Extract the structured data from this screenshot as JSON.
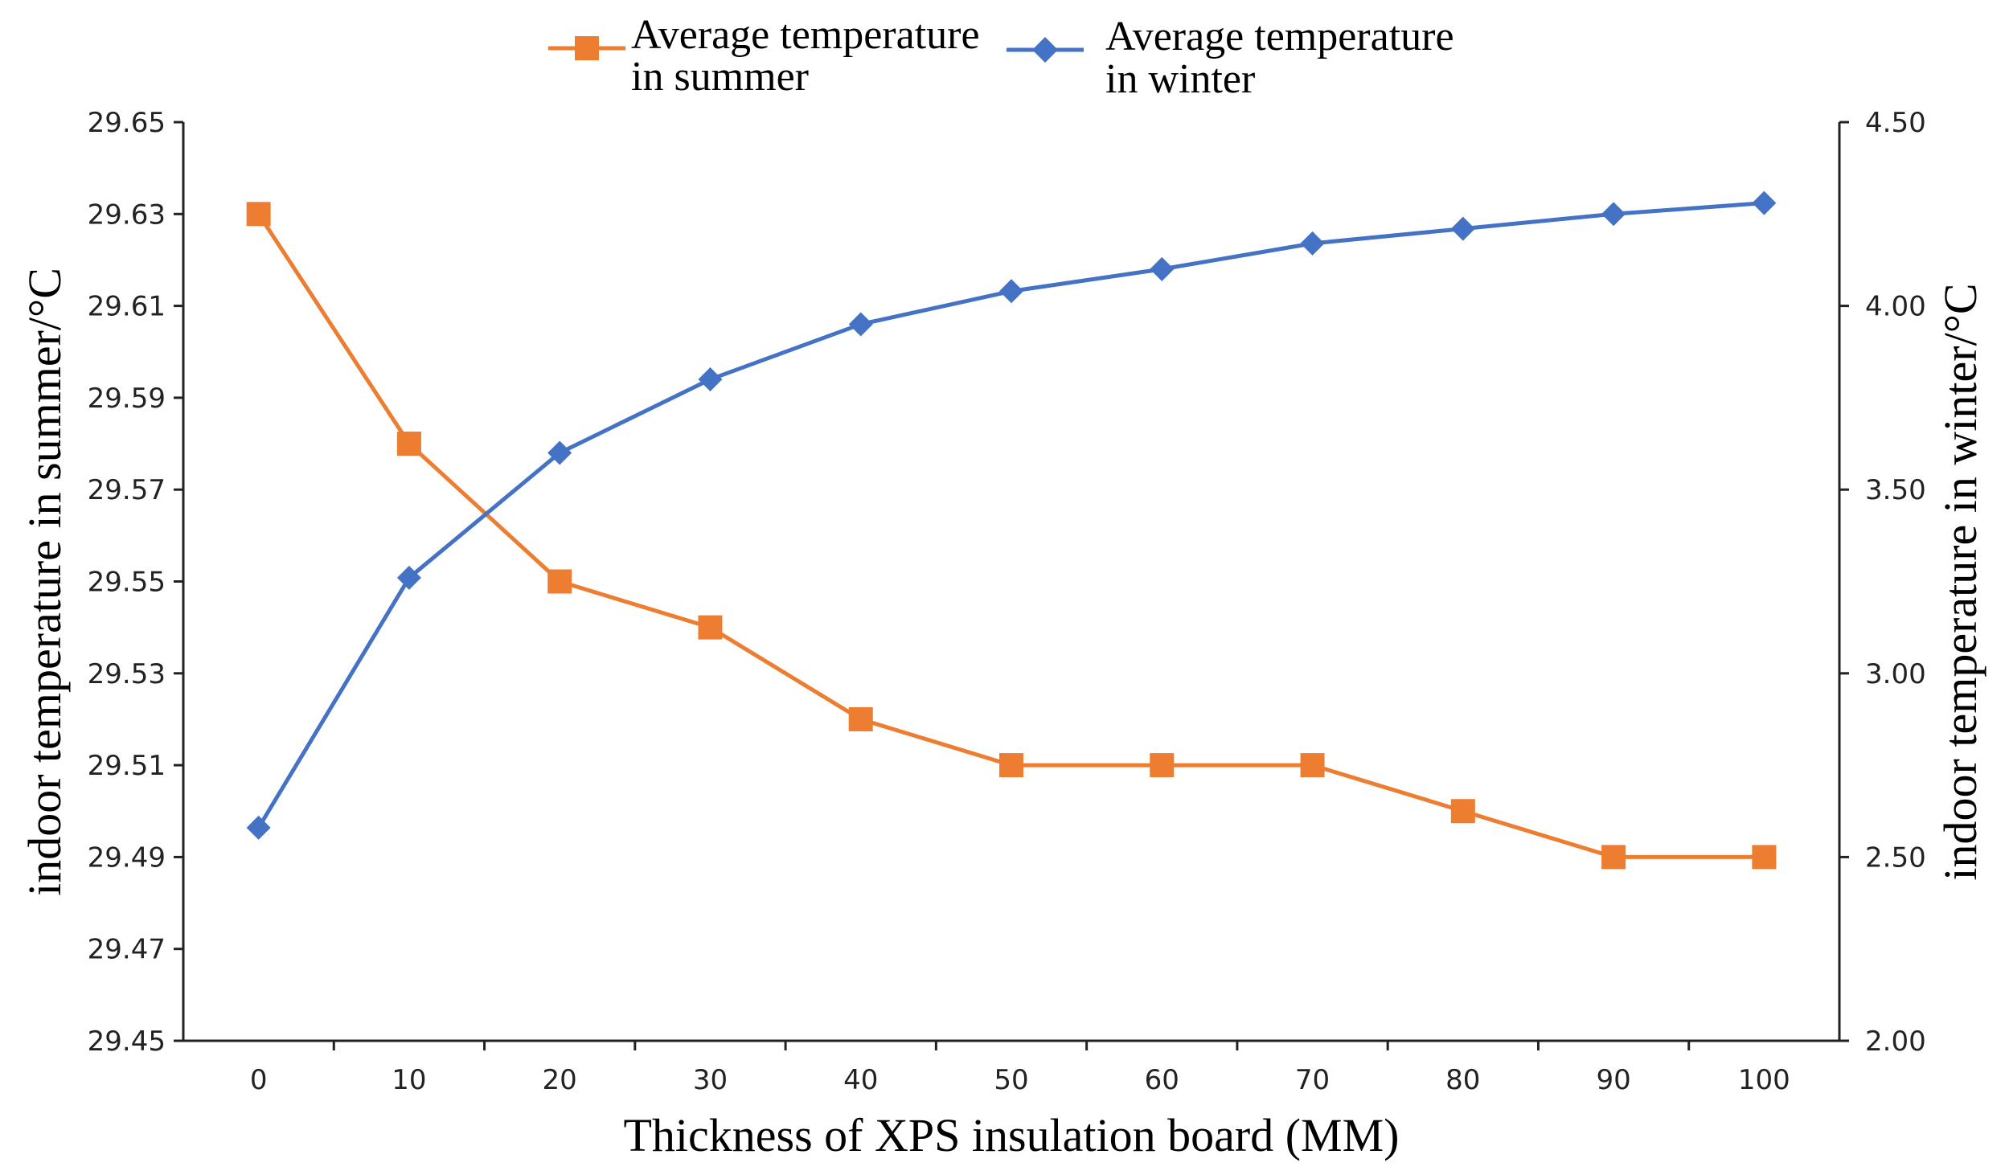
{
  "chart_data": {
    "type": "line",
    "title": "",
    "xlabel": "Thickness of XPS insulation board (MM)",
    "ylabel_left": "indoor temperature in summer/°C",
    "ylabel_right": "indoor temperature in winter/°C",
    "x": [
      0,
      10,
      20,
      30,
      40,
      50,
      60,
      70,
      80,
      90,
      100
    ],
    "x_tick_labels": [
      "0",
      "10",
      "20",
      "30",
      "40",
      "50",
      "60",
      "70",
      "80",
      "90",
      "100"
    ],
    "xlim": [
      -5,
      105
    ],
    "y_left_lim": [
      29.45,
      29.65
    ],
    "y_left_ticks": [
      "29.45",
      "29.47",
      "29.49",
      "29.51",
      "29.53",
      "29.55",
      "29.57",
      "29.59",
      "29.61",
      "29.63",
      "29.65"
    ],
    "y_right_lim": [
      2.0,
      4.5
    ],
    "y_right_ticks": [
      "2.00",
      "2.50",
      "3.00",
      "3.50",
      "4.00",
      "4.50"
    ],
    "grid": false,
    "legend_position": "top-center",
    "series": [
      {
        "name_line1": "Average temperature",
        "name_line2": "in summer",
        "axis": "left",
        "marker": "square",
        "color": "#ED7D31",
        "values": [
          29.63,
          29.58,
          29.55,
          29.54,
          29.52,
          29.51,
          29.51,
          29.51,
          29.5,
          29.49,
          29.49
        ]
      },
      {
        "name_line1": "Average temperature",
        "name_line2": "in winter",
        "axis": "right",
        "marker": "diamond",
        "color": "#4472C4",
        "values": [
          2.58,
          3.26,
          3.6,
          3.8,
          3.95,
          4.04,
          4.1,
          4.17,
          4.21,
          4.25,
          4.28
        ]
      }
    ]
  }
}
